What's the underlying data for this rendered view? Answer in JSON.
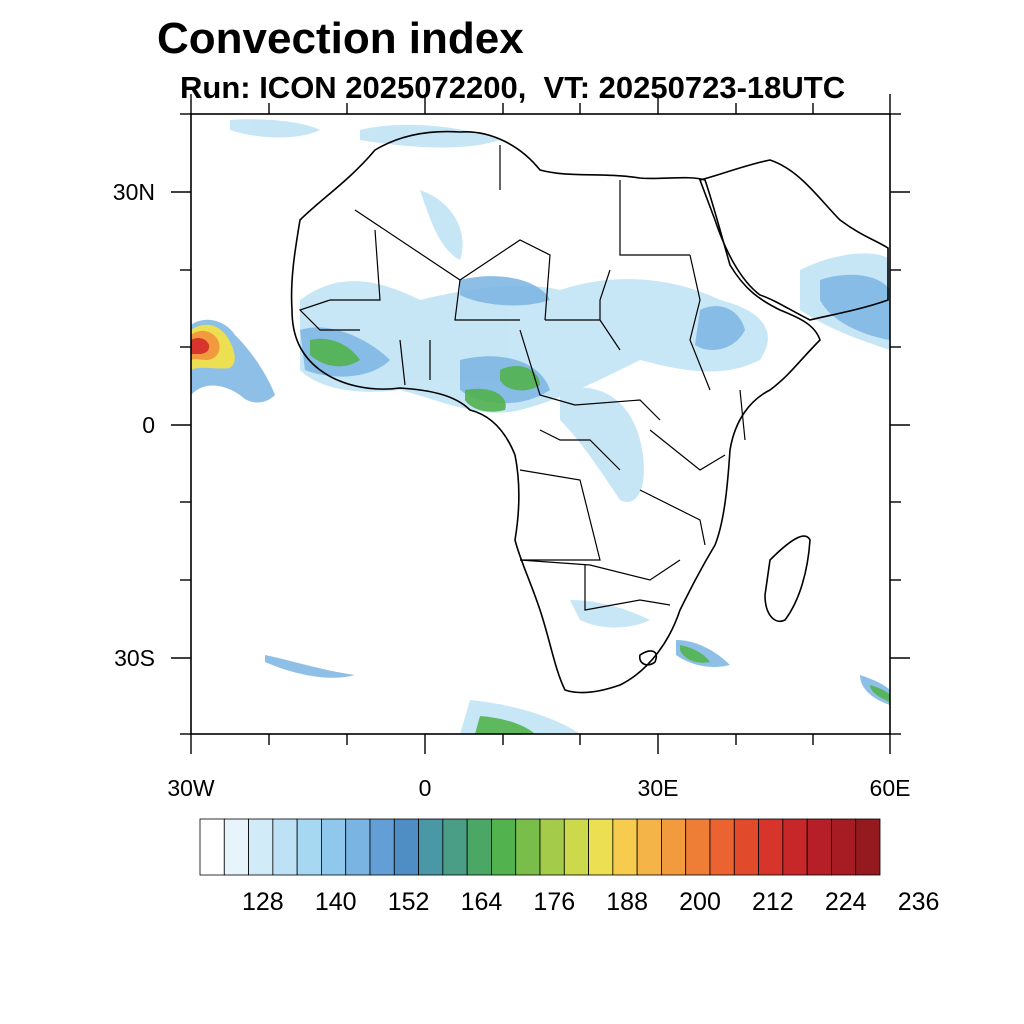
{
  "title": "Convection index",
  "subtitle": "Run: ICON 2025072200,  VT: 20250723-18UTC",
  "map": {
    "region": "Africa",
    "lon_range": [
      -30,
      60
    ],
    "lat_range": [
      -40,
      40
    ],
    "lat_labels": [
      "30N",
      "0",
      "30S"
    ],
    "lon_labels": [
      "30W",
      "0",
      "30E",
      "60E"
    ]
  },
  "colorbar": {
    "labels": [
      "128",
      "140",
      "152",
      "164",
      "176",
      "188",
      "200",
      "212",
      "224",
      "236"
    ],
    "colors": [
      "#ffffff",
      "#e8f4fb",
      "#d2ebf8",
      "#bde2f5",
      "#a6d8f2",
      "#8fc8ec",
      "#7ab4e2",
      "#639fd6",
      "#4f8ec5",
      "#4a97a6",
      "#4a9e86",
      "#4aa766",
      "#52b24e",
      "#79bd4a",
      "#a4cb4a",
      "#cbd94b",
      "#ece052",
      "#f7cc4e",
      "#f5b447",
      "#f29a3e",
      "#ee7e35",
      "#ea6330",
      "#e24a2c",
      "#d7342b",
      "#c8272a",
      "#b61f27",
      "#a71b23",
      "#951a1f"
    ]
  }
}
